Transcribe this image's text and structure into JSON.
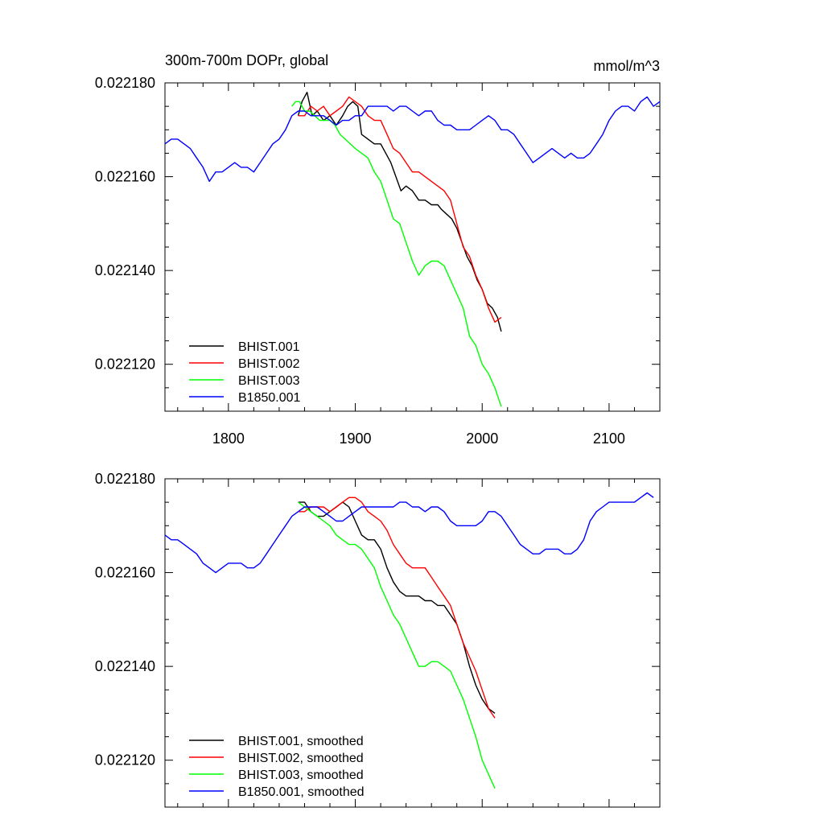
{
  "chart_data": [
    {
      "type": "line",
      "title_left": "300m-700m DOPr, global",
      "title_right": "mmol/m^3",
      "xlim": [
        1750,
        2140
      ],
      "ylim": [
        0.02211,
        0.02218
      ],
      "x_ticks": [
        1800,
        1900,
        2000,
        2100
      ],
      "x_tick_labels": [
        "1800",
        "1900",
        "2000",
        "2100"
      ],
      "y_ticks": [
        0.02218,
        0.02216,
        0.02214,
        0.02212
      ],
      "y_tick_labels": [
        "0.022180",
        "0.022160",
        "0.022140",
        "0.022120"
      ],
      "grid": false,
      "legend_placement": "bottom-left",
      "series": [
        {
          "name": "BHIST.001",
          "color": "#000000",
          "x": [
            1855,
            1858,
            1862,
            1866,
            1870,
            1875,
            1880,
            1885,
            1890,
            1894,
            1898,
            1902,
            1905,
            1910,
            1915,
            1920,
            1924,
            1928,
            1932,
            1936,
            1940,
            1945,
            1950,
            1955,
            1960,
            1965,
            1968,
            1972,
            1976,
            1980,
            1984,
            1988,
            1992,
            1996,
            2000,
            2004,
            2008,
            2012,
            2015
          ],
          "y": [
            0.022173,
            0.022176,
            0.022178,
            0.022173,
            0.022174,
            0.022172,
            0.022173,
            0.022171,
            0.022173,
            0.022175,
            0.022176,
            0.022175,
            0.022169,
            0.022168,
            0.022167,
            0.022167,
            0.022165,
            0.022163,
            0.02216,
            0.022157,
            0.022158,
            0.022157,
            0.022155,
            0.022155,
            0.022154,
            0.022154,
            0.022153,
            0.022152,
            0.022151,
            0.022149,
            0.022146,
            0.022143,
            0.022141,
            0.022138,
            0.022136,
            0.022133,
            0.022132,
            0.02213,
            0.022127
          ]
        },
        {
          "name": "BHIST.002",
          "color": "#ff0000",
          "x": [
            1855,
            1860,
            1865,
            1870,
            1875,
            1880,
            1885,
            1890,
            1895,
            1900,
            1905,
            1910,
            1915,
            1920,
            1925,
            1930,
            1935,
            1940,
            1945,
            1950,
            1955,
            1960,
            1965,
            1970,
            1975,
            1980,
            1985,
            1990,
            1995,
            2000,
            2005,
            2010,
            2015
          ],
          "y": [
            0.022173,
            0.022173,
            0.022175,
            0.022174,
            0.022175,
            0.022173,
            0.022174,
            0.022175,
            0.022177,
            0.022176,
            0.022175,
            0.022173,
            0.022172,
            0.022172,
            0.022169,
            0.022166,
            0.022165,
            0.022163,
            0.022161,
            0.022161,
            0.02216,
            0.022159,
            0.022158,
            0.022157,
            0.022155,
            0.02215,
            0.022145,
            0.022143,
            0.022139,
            0.022136,
            0.022132,
            0.022129,
            0.02213
          ]
        },
        {
          "name": "BHIST.003",
          "color": "#00ff00",
          "x": [
            1850,
            1853,
            1856,
            1860,
            1864,
            1868,
            1872,
            1876,
            1880,
            1884,
            1888,
            1892,
            1896,
            1900,
            1905,
            1910,
            1915,
            1920,
            1925,
            1930,
            1935,
            1940,
            1945,
            1950,
            1955,
            1960,
            1965,
            1970,
            1975,
            1980,
            1985,
            1990,
            1995,
            2000,
            2005,
            2010,
            2015
          ],
          "y": [
            0.022175,
            0.022176,
            0.022176,
            0.022174,
            0.022174,
            0.022173,
            0.022172,
            0.022172,
            0.022172,
            0.022171,
            0.022169,
            0.022168,
            0.022167,
            0.022166,
            0.022165,
            0.022164,
            0.022161,
            0.022159,
            0.022155,
            0.022151,
            0.02215,
            0.022146,
            0.022142,
            0.022139,
            0.022141,
            0.022142,
            0.022142,
            0.022141,
            0.022138,
            0.022135,
            0.022132,
            0.022126,
            0.022124,
            0.02212,
            0.022118,
            0.022115,
            0.022111
          ]
        },
        {
          "name": "B1850.001",
          "color": "#0000ff",
          "x": [
            1750,
            1755,
            1760,
            1765,
            1770,
            1775,
            1780,
            1785,
            1790,
            1795,
            1800,
            1805,
            1810,
            1815,
            1820,
            1825,
            1830,
            1835,
            1840,
            1845,
            1850,
            1855,
            1860,
            1865,
            1870,
            1875,
            1880,
            1885,
            1890,
            1895,
            1900,
            1905,
            1910,
            1915,
            1920,
            1925,
            1930,
            1935,
            1940,
            1945,
            1950,
            1955,
            1960,
            1965,
            1970,
            1975,
            1980,
            1985,
            1990,
            1995,
            2000,
            2005,
            2010,
            2015,
            2020,
            2025,
            2030,
            2035,
            2040,
            2045,
            2050,
            2055,
            2060,
            2065,
            2070,
            2075,
            2080,
            2085,
            2090,
            2095,
            2100,
            2105,
            2110,
            2115,
            2120,
            2125,
            2130,
            2135,
            2140
          ],
          "y": [
            0.022167,
            0.022168,
            0.022168,
            0.022167,
            0.022166,
            0.022164,
            0.022162,
            0.022159,
            0.022161,
            0.022161,
            0.022162,
            0.022163,
            0.022162,
            0.022162,
            0.022161,
            0.022163,
            0.022165,
            0.022167,
            0.022168,
            0.02217,
            0.022173,
            0.022174,
            0.022174,
            0.022173,
            0.022173,
            0.022173,
            0.022172,
            0.022171,
            0.022172,
            0.022172,
            0.022173,
            0.022173,
            0.022175,
            0.022175,
            0.022175,
            0.022175,
            0.022174,
            0.022175,
            0.022175,
            0.022174,
            0.022173,
            0.022174,
            0.022174,
            0.022172,
            0.022171,
            0.022171,
            0.02217,
            0.02217,
            0.02217,
            0.022171,
            0.022172,
            0.022173,
            0.022172,
            0.02217,
            0.02217,
            0.022169,
            0.022167,
            0.022165,
            0.022163,
            0.022164,
            0.022165,
            0.022166,
            0.022165,
            0.022164,
            0.022165,
            0.022164,
            0.022164,
            0.022165,
            0.022167,
            0.022169,
            0.022172,
            0.022174,
            0.022175,
            0.022175,
            0.022174,
            0.022176,
            0.022177,
            0.022175,
            0.022176
          ]
        }
      ]
    },
    {
      "type": "line",
      "xlim": [
        1750,
        2140
      ],
      "ylim": [
        0.02211,
        0.02218
      ],
      "x_ticks": [
        1800,
        1900,
        2000,
        2100
      ],
      "y_ticks": [
        0.02218,
        0.02216,
        0.02214,
        0.02212
      ],
      "y_tick_labels": [
        "0.022180",
        "0.022160",
        "0.022140",
        "0.022120"
      ],
      "grid": false,
      "legend_placement": "bottom-left",
      "series": [
        {
          "name": "BHIST.001, smoothed",
          "color": "#000000",
          "x": [
            1855,
            1860,
            1865,
            1870,
            1875,
            1880,
            1885,
            1890,
            1895,
            1900,
            1905,
            1910,
            1915,
            1920,
            1925,
            1930,
            1935,
            1940,
            1945,
            1950,
            1955,
            1960,
            1965,
            1970,
            1975,
            1980,
            1985,
            1990,
            1995,
            2000,
            2005,
            2010
          ],
          "y": [
            0.022175,
            0.022175,
            0.022173,
            0.022172,
            0.022172,
            0.022173,
            0.022174,
            0.022175,
            0.022174,
            0.022171,
            0.022168,
            0.022167,
            0.022167,
            0.022165,
            0.022161,
            0.022158,
            0.022156,
            0.022155,
            0.022155,
            0.022155,
            0.022154,
            0.022154,
            0.022153,
            0.022153,
            0.022151,
            0.022149,
            0.022145,
            0.02214,
            0.022136,
            0.022133,
            0.022131,
            0.02213
          ]
        },
        {
          "name": "BHIST.002, smoothed",
          "color": "#ff0000",
          "x": [
            1855,
            1860,
            1865,
            1870,
            1875,
            1880,
            1885,
            1890,
            1895,
            1900,
            1905,
            1910,
            1915,
            1920,
            1925,
            1930,
            1935,
            1940,
            1945,
            1950,
            1955,
            1960,
            1965,
            1970,
            1975,
            1980,
            1985,
            1990,
            1995,
            2000,
            2005,
            2010
          ],
          "y": [
            0.022173,
            0.022173,
            0.022174,
            0.022174,
            0.022174,
            0.022173,
            0.022174,
            0.022175,
            0.022176,
            0.022176,
            0.022175,
            0.022173,
            0.022172,
            0.022171,
            0.022169,
            0.022166,
            0.022164,
            0.022162,
            0.022161,
            0.022161,
            0.022161,
            0.022159,
            0.022157,
            0.022155,
            0.022153,
            0.022149,
            0.022145,
            0.022142,
            0.022139,
            0.022135,
            0.022131,
            0.022129
          ]
        },
        {
          "name": "BHIST.003, smoothed",
          "color": "#00ff00",
          "x": [
            1855,
            1860,
            1865,
            1870,
            1875,
            1880,
            1885,
            1890,
            1895,
            1900,
            1905,
            1910,
            1915,
            1920,
            1925,
            1930,
            1935,
            1940,
            1945,
            1950,
            1955,
            1960,
            1965,
            1970,
            1975,
            1980,
            1985,
            1990,
            1995,
            2000,
            2005,
            2010
          ],
          "y": [
            0.022175,
            0.022174,
            0.022173,
            0.022172,
            0.022171,
            0.02217,
            0.022168,
            0.022167,
            0.022166,
            0.022166,
            0.022165,
            0.022163,
            0.022161,
            0.022157,
            0.022154,
            0.022151,
            0.022149,
            0.022146,
            0.022143,
            0.02214,
            0.02214,
            0.022141,
            0.022141,
            0.02214,
            0.022139,
            0.022136,
            0.022133,
            0.022129,
            0.022125,
            0.02212,
            0.022117,
            0.022114
          ]
        },
        {
          "name": "B1850.001, smoothed",
          "color": "#0000ff",
          "x": [
            1750,
            1755,
            1760,
            1765,
            1770,
            1775,
            1780,
            1785,
            1790,
            1795,
            1800,
            1805,
            1810,
            1815,
            1820,
            1825,
            1830,
            1835,
            1840,
            1845,
            1850,
            1855,
            1860,
            1865,
            1870,
            1875,
            1880,
            1885,
            1890,
            1895,
            1900,
            1905,
            1910,
            1915,
            1920,
            1925,
            1930,
            1935,
            1940,
            1945,
            1950,
            1955,
            1960,
            1965,
            1970,
            1975,
            1980,
            1985,
            1990,
            1995,
            2000,
            2005,
            2010,
            2015,
            2020,
            2025,
            2030,
            2035,
            2040,
            2045,
            2050,
            2055,
            2060,
            2065,
            2070,
            2075,
            2080,
            2085,
            2090,
            2095,
            2100,
            2105,
            2110,
            2115,
            2120,
            2125,
            2130,
            2135
          ],
          "y": [
            0.022168,
            0.022167,
            0.022167,
            0.022166,
            0.022165,
            0.022164,
            0.022162,
            0.022161,
            0.02216,
            0.022161,
            0.022162,
            0.022162,
            0.022162,
            0.022161,
            0.022161,
            0.022162,
            0.022164,
            0.022166,
            0.022168,
            0.02217,
            0.022172,
            0.022173,
            0.022174,
            0.022174,
            0.022174,
            0.022173,
            0.022172,
            0.022171,
            0.022171,
            0.022172,
            0.022173,
            0.022174,
            0.022174,
            0.022174,
            0.022174,
            0.022174,
            0.022174,
            0.022175,
            0.022175,
            0.022174,
            0.022174,
            0.022173,
            0.022174,
            0.022174,
            0.022173,
            0.022171,
            0.02217,
            0.02217,
            0.02217,
            0.02217,
            0.022171,
            0.022173,
            0.022173,
            0.022172,
            0.02217,
            0.022168,
            0.022166,
            0.022165,
            0.022164,
            0.022164,
            0.022165,
            0.022165,
            0.022165,
            0.022164,
            0.022164,
            0.022165,
            0.022167,
            0.022171,
            0.022173,
            0.022174,
            0.022175,
            0.022175,
            0.022175,
            0.022175,
            0.022175,
            0.022176,
            0.022177,
            0.022176
          ]
        }
      ]
    }
  ]
}
